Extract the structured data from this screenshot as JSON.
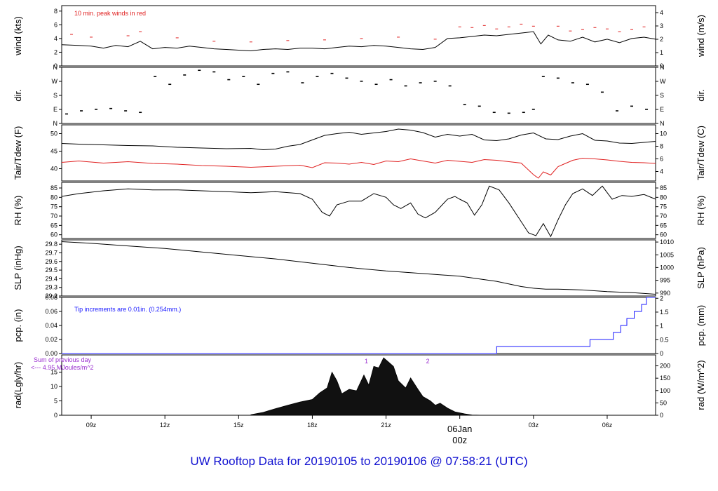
{
  "footer_title": "UW Rooftop Data for 20190105  to  20190106 @ 07:58:21  (UTC)",
  "colors": {
    "black": "#000000",
    "red": "#e02020",
    "blue": "#1a1aff",
    "purple": "#9b30d0",
    "footer": "#1010d0",
    "date": "#e02020"
  },
  "x_axis": {
    "range_hours": [
      7.8,
      31.97
    ],
    "ticks": [
      {
        "h": 9,
        "label": "09z"
      },
      {
        "h": 12,
        "label": "12z"
      },
      {
        "h": 15,
        "label": "15z"
      },
      {
        "h": 18,
        "label": "18z"
      },
      {
        "h": 21,
        "label": "21z"
      },
      {
        "h": 24,
        "label": ""
      },
      {
        "h": 27,
        "label": "03z"
      },
      {
        "h": 30,
        "label": "06z"
      }
    ],
    "date_label_line1": "06Jan",
    "date_label_line2": "00z"
  },
  "chart_data": [
    {
      "id": "wind",
      "type": "line",
      "ylabel_left": "wind (kts)",
      "ylabel_right": "wind (m/s)",
      "ylim": [
        0,
        8.8
      ],
      "left_ticks": [
        "0",
        "2",
        "4",
        "6",
        "8"
      ],
      "left_tick_values": [
        0,
        2,
        4,
        6,
        8
      ],
      "right_ticks": [
        "0",
        "1",
        "2",
        "3",
        "4"
      ],
      "right_tick_values_kts": [
        0,
        1.944,
        3.888,
        5.832,
        7.776
      ],
      "annotation": "10 min. peak winds in red",
      "series": [
        {
          "color": "black",
          "x": [
            7.8,
            8.5,
            9.0,
            9.5,
            10.0,
            10.5,
            11.0,
            11.5,
            12.0,
            12.5,
            13.0,
            13.5,
            14.0,
            14.5,
            15.0,
            15.5,
            16.0,
            16.5,
            17.0,
            17.5,
            18.0,
            18.5,
            19.0,
            19.5,
            20.0,
            20.5,
            21.0,
            21.5,
            22.0,
            22.5,
            23.0,
            23.5,
            24.0,
            24.5,
            25.0,
            25.5,
            26.0,
            26.5,
            27.0,
            27.3,
            27.6,
            28.0,
            28.5,
            29.0,
            29.5,
            30.0,
            30.5,
            31.0,
            31.5,
            31.97
          ],
          "y": [
            3.1,
            3.0,
            2.9,
            2.6,
            3.0,
            2.8,
            3.6,
            2.5,
            2.7,
            2.6,
            2.9,
            2.7,
            2.5,
            2.4,
            2.3,
            2.2,
            2.4,
            2.5,
            2.4,
            2.6,
            2.6,
            2.5,
            2.7,
            2.9,
            2.8,
            3.0,
            2.9,
            2.7,
            2.5,
            2.4,
            2.7,
            4.0,
            4.1,
            4.3,
            4.5,
            4.4,
            4.6,
            4.8,
            5.0,
            3.2,
            4.5,
            3.8,
            3.6,
            4.2,
            3.5,
            3.9,
            3.4,
            4.0,
            4.2,
            3.9
          ]
        }
      ],
      "peaks": {
        "color": "red",
        "x": [
          8.2,
          9.0,
          10.5,
          11.0,
          12.5,
          14.0,
          15.5,
          17.0,
          18.5,
          20.0,
          21.5,
          23.0,
          24.0,
          24.5,
          25.0,
          25.5,
          26.0,
          26.5,
          27.0,
          28.0,
          28.5,
          29.0,
          29.5,
          30.0,
          30.5,
          31.0,
          31.5
        ],
        "y": [
          4.6,
          4.2,
          4.4,
          5.0,
          4.1,
          3.6,
          3.5,
          3.7,
          3.8,
          4.0,
          4.2,
          3.9,
          5.7,
          5.6,
          5.9,
          5.4,
          5.7,
          6.1,
          5.8,
          5.8,
          5.1,
          5.3,
          5.6,
          5.4,
          5.0,
          5.3,
          5.7
        ]
      }
    },
    {
      "id": "dir",
      "type": "scatter",
      "ylabel_left": "dir.",
      "ylabel_right": "dir.",
      "ylim": [
        0,
        360
      ],
      "left_ticks": [
        "N",
        "E",
        "S",
        "W",
        "N"
      ],
      "tick_values": [
        0,
        90,
        180,
        270,
        360
      ],
      "right_ticks": [
        "N",
        "E",
        "S",
        "W",
        "N"
      ],
      "series": [
        {
          "color": "black",
          "x": [
            8.0,
            8.6,
            9.2,
            9.8,
            10.4,
            11.0,
            11.6,
            12.2,
            12.8,
            13.4,
            14.0,
            14.6,
            15.2,
            15.8,
            16.4,
            17.0,
            17.6,
            18.2,
            18.8,
            19.4,
            20.0,
            20.6,
            21.2,
            21.8,
            22.4,
            23.0,
            23.6,
            24.2,
            24.8,
            25.4,
            26.0,
            26.6,
            27.0,
            27.4,
            28.0,
            28.6,
            29.2,
            29.8,
            30.4,
            31.0,
            31.6
          ],
          "y": [
            60,
            80,
            90,
            95,
            80,
            70,
            300,
            250,
            310,
            340,
            330,
            280,
            300,
            250,
            320,
            330,
            260,
            300,
            320,
            290,
            270,
            250,
            280,
            240,
            260,
            270,
            240,
            120,
            110,
            70,
            65,
            70,
            90,
            300,
            290,
            260,
            250,
            200,
            80,
            110,
            90
          ]
        }
      ]
    },
    {
      "id": "temp",
      "type": "line",
      "ylabel_left": "Tair/Tdew (F)",
      "ylabel_right": "Tair/Tdew (C)",
      "ylim": [
        36.5,
        52.5
      ],
      "left_ticks": [
        "40",
        "45",
        "50"
      ],
      "left_tick_values": [
        40,
        45,
        50
      ],
      "right_ticks": [
        "4",
        "6",
        "8",
        "10"
      ],
      "right_tick_values_f": [
        39.2,
        42.8,
        46.4,
        50.0
      ],
      "series": [
        {
          "name": "Tair",
          "color": "black",
          "x": [
            7.8,
            8.5,
            9.5,
            10.5,
            11.5,
            12.5,
            13.5,
            14.5,
            15.5,
            16.0,
            16.5,
            17.0,
            17.5,
            18.0,
            18.5,
            19.0,
            19.5,
            20.0,
            20.5,
            21.0,
            21.5,
            22.0,
            22.5,
            23.0,
            23.5,
            24.0,
            24.5,
            25.0,
            25.5,
            26.0,
            26.5,
            27.0,
            27.5,
            28.0,
            28.5,
            29.0,
            29.5,
            30.0,
            30.5,
            31.0,
            31.5,
            31.97
          ],
          "y": [
            47.2,
            47.0,
            46.8,
            46.6,
            46.5,
            46.1,
            45.9,
            45.7,
            45.8,
            45.4,
            45.6,
            46.4,
            46.9,
            48.2,
            49.5,
            50.0,
            50.4,
            49.8,
            50.2,
            50.6,
            51.3,
            51.0,
            50.3,
            49.0,
            49.8,
            49.3,
            49.8,
            48.2,
            48.0,
            48.5,
            49.6,
            50.2,
            48.5,
            48.3,
            49.3,
            50.0,
            48.1,
            47.9,
            47.3,
            47.2,
            47.5,
            47.8
          ]
        },
        {
          "name": "Tdew",
          "color": "red",
          "x": [
            7.8,
            8.5,
            9.5,
            10.5,
            11.5,
            12.5,
            13.5,
            14.5,
            15.5,
            16.5,
            17.5,
            18.0,
            18.5,
            19.0,
            19.5,
            20.0,
            20.5,
            21.0,
            21.5,
            22.0,
            22.5,
            23.0,
            23.5,
            24.0,
            24.5,
            25.0,
            25.5,
            26.0,
            26.5,
            27.0,
            27.2,
            27.4,
            27.7,
            28.0,
            28.3,
            28.6,
            29.0,
            29.5,
            30.0,
            30.5,
            31.0,
            31.5,
            31.97
          ],
          "y": [
            41.8,
            42.2,
            41.6,
            42.0,
            41.5,
            41.3,
            40.9,
            40.7,
            40.4,
            40.7,
            41.0,
            40.3,
            41.7,
            41.6,
            41.3,
            41.8,
            41.2,
            42.2,
            42.0,
            42.8,
            42.2,
            41.6,
            42.4,
            42.1,
            41.8,
            42.6,
            42.4,
            42.0,
            41.6,
            38.3,
            37.3,
            39.1,
            38.2,
            40.6,
            41.5,
            42.4,
            43.0,
            42.8,
            42.5,
            42.1,
            41.8,
            41.7,
            41.5
          ]
        }
      ]
    },
    {
      "id": "rh",
      "type": "line",
      "ylabel_left": "RH (%)",
      "ylabel_right": "RH (%)",
      "ylim": [
        58,
        88
      ],
      "left_ticks": [
        "60",
        "65",
        "70",
        "75",
        "80",
        "85"
      ],
      "left_tick_values": [
        60,
        65,
        70,
        75,
        80,
        85
      ],
      "right_ticks": [
        "60",
        "65",
        "70",
        "75",
        "80",
        "85"
      ],
      "series": [
        {
          "color": "black",
          "x": [
            7.8,
            8.5,
            9.5,
            10.5,
            11.5,
            12.5,
            13.5,
            14.5,
            15.5,
            16.5,
            17.5,
            18.0,
            18.4,
            18.7,
            19.0,
            19.5,
            20.0,
            20.5,
            21.0,
            21.3,
            21.6,
            22.0,
            22.3,
            22.6,
            23.0,
            23.5,
            23.8,
            24.0,
            24.3,
            24.6,
            24.9,
            25.2,
            25.6,
            26.0,
            26.5,
            26.8,
            27.1,
            27.4,
            27.7,
            28.0,
            28.3,
            28.6,
            29.0,
            29.4,
            29.8,
            30.2,
            30.6,
            31.0,
            31.5,
            31.97
          ],
          "y": [
            80.5,
            82.0,
            83.5,
            84.5,
            84.0,
            84.0,
            83.5,
            83.0,
            82.5,
            83.0,
            82.0,
            79.0,
            72.0,
            70.0,
            76.0,
            78.0,
            78.0,
            82.0,
            80.0,
            76.0,
            74.0,
            77.0,
            71.0,
            69.0,
            72.0,
            79.0,
            80.5,
            79.0,
            77.0,
            70.5,
            76.0,
            86.0,
            84.0,
            77.0,
            67.0,
            61.0,
            59.5,
            66.0,
            59.0,
            68.0,
            76.0,
            82.0,
            84.5,
            81.0,
            86.0,
            79.0,
            81.0,
            80.5,
            81.5,
            79.0
          ]
        }
      ]
    },
    {
      "id": "slp",
      "type": "line",
      "ylabel_left": "SLP (inHg)",
      "ylabel_right": "SLP (hPa)",
      "ylim": [
        29.2,
        29.85
      ],
      "left_ticks": [
        "29.2",
        "29.3",
        "29.4",
        "29.5",
        "29.6",
        "29.7",
        "29.8"
      ],
      "left_tick_values": [
        29.2,
        29.3,
        29.4,
        29.5,
        29.6,
        29.7,
        29.8
      ],
      "right_ticks": [
        "990",
        "995",
        "1000",
        "1005",
        "1010"
      ],
      "right_tick_values_inhg": [
        29.234,
        29.382,
        29.53,
        29.677,
        29.825
      ],
      "series": [
        {
          "color": "black",
          "x": [
            7.8,
            9.0,
            10.5,
            12.0,
            13.5,
            15.0,
            16.5,
            18.0,
            19.5,
            21.0,
            22.5,
            24.0,
            25.5,
            26.5,
            27.0,
            27.5,
            28.0,
            29.0,
            30.0,
            31.0,
            31.97
          ],
          "y": [
            29.83,
            29.81,
            29.78,
            29.75,
            29.71,
            29.67,
            29.63,
            29.58,
            29.53,
            29.49,
            29.46,
            29.43,
            29.37,
            29.31,
            29.29,
            29.28,
            29.28,
            29.27,
            29.25,
            29.24,
            29.22
          ]
        }
      ]
    },
    {
      "id": "pcp",
      "type": "line",
      "ylabel_left": "pcp. (in)",
      "ylabel_right": "pcp. (mm)",
      "ylim": [
        0,
        0.08
      ],
      "left_ticks": [
        "0.00",
        "0.02",
        "0.04",
        "0.06",
        "0.08"
      ],
      "left_tick_values": [
        0,
        0.02,
        0.04,
        0.06,
        0.08
      ],
      "right_ticks": [
        "0",
        "0.5",
        "1",
        "1.5",
        "2"
      ],
      "right_tick_values_in": [
        0,
        0.01968,
        0.03937,
        0.05905,
        0.07874
      ],
      "annotation": "Tip increments are 0.01in. (0.254mm.)",
      "series": [
        {
          "color": "blue",
          "x": [
            7.8,
            25.5,
            25.5,
            29.3,
            29.3,
            30.25,
            30.25,
            30.55,
            30.55,
            30.8,
            30.8,
            31.1,
            31.1,
            31.4,
            31.4,
            31.6,
            31.6,
            31.97
          ],
          "y": [
            0,
            0,
            0.01,
            0.01,
            0.02,
            0.02,
            0.03,
            0.03,
            0.04,
            0.04,
            0.05,
            0.05,
            0.06,
            0.06,
            0.07,
            0.07,
            0.08,
            0.08
          ]
        }
      ]
    },
    {
      "id": "rad",
      "type": "area",
      "ylabel_left": "rad(Lgly/hr)",
      "ylabel_right": "rad (W/m^2)",
      "ylim": [
        0,
        21
      ],
      "left_ticks": [
        "0",
        "5",
        "10",
        "15"
      ],
      "left_tick_values": [
        0,
        5,
        10,
        15
      ],
      "right_ticks": [
        "0",
        "50",
        "100",
        "150",
        "200"
      ],
      "right_tick_values_lgly": [
        0,
        4.3,
        8.6,
        12.9,
        17.2
      ],
      "annotation_line1": "Sum of previous day",
      "annotation_line2": "<--- 4.95 MJoules/m^2",
      "marker_1": "1",
      "marker_2": "2",
      "series": [
        {
          "color": "black",
          "x": [
            15.5,
            16.0,
            16.5,
            17.0,
            17.5,
            18.0,
            18.3,
            18.6,
            18.8,
            19.0,
            19.2,
            19.5,
            19.8,
            20.1,
            20.3,
            20.5,
            20.7,
            20.9,
            21.1,
            21.3,
            21.5,
            21.8,
            22.0,
            22.3,
            22.5,
            22.8,
            23.0,
            23.2,
            23.5,
            23.8,
            24.2,
            24.5,
            25.0
          ],
          "y": [
            0.2,
            1.0,
            2.3,
            3.5,
            4.6,
            5.5,
            7.8,
            9.5,
            15.0,
            12.0,
            7.5,
            9.0,
            8.5,
            14.0,
            10.5,
            17.0,
            16.5,
            20.0,
            18.5,
            17.0,
            12.0,
            9.5,
            13.0,
            9.0,
            6.5,
            5.0,
            3.5,
            4.2,
            2.5,
            1.2,
            0.5,
            0.1,
            0.0
          ]
        }
      ]
    }
  ]
}
